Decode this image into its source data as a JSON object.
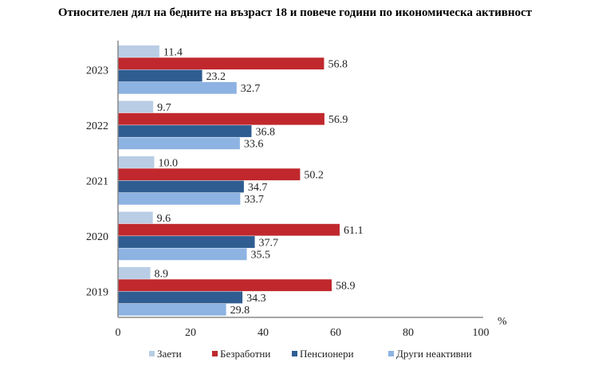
{
  "chart_data": {
    "type": "bar",
    "orientation": "horizontal",
    "title": "Относителен дял на бедните на възраст 18 и повече години по икономическа активност",
    "xlabel": "%",
    "ylabel": "",
    "categories": [
      "2023",
      "2022",
      "2021",
      "2020",
      "2019"
    ],
    "series": [
      {
        "name": "Заети",
        "color": "#b9cde5",
        "values": [
          11.4,
          9.7,
          10.0,
          9.6,
          8.9
        ]
      },
      {
        "name": "Безработни",
        "color": "#c0282d",
        "values": [
          56.8,
          56.9,
          50.2,
          61.1,
          58.9
        ]
      },
      {
        "name": "Пенсионери",
        "color": "#2f5d91",
        "values": [
          23.2,
          36.8,
          34.7,
          37.7,
          34.3
        ]
      },
      {
        "name": "Други неактивни",
        "color": "#8db3e2",
        "values": [
          32.7,
          33.6,
          33.7,
          35.5,
          29.8
        ]
      }
    ],
    "xlim": [
      0,
      100
    ],
    "xticks": [
      "0",
      "20",
      "40",
      "60",
      "80",
      "100"
    ],
    "grid": false,
    "legend_position": "bottom"
  }
}
